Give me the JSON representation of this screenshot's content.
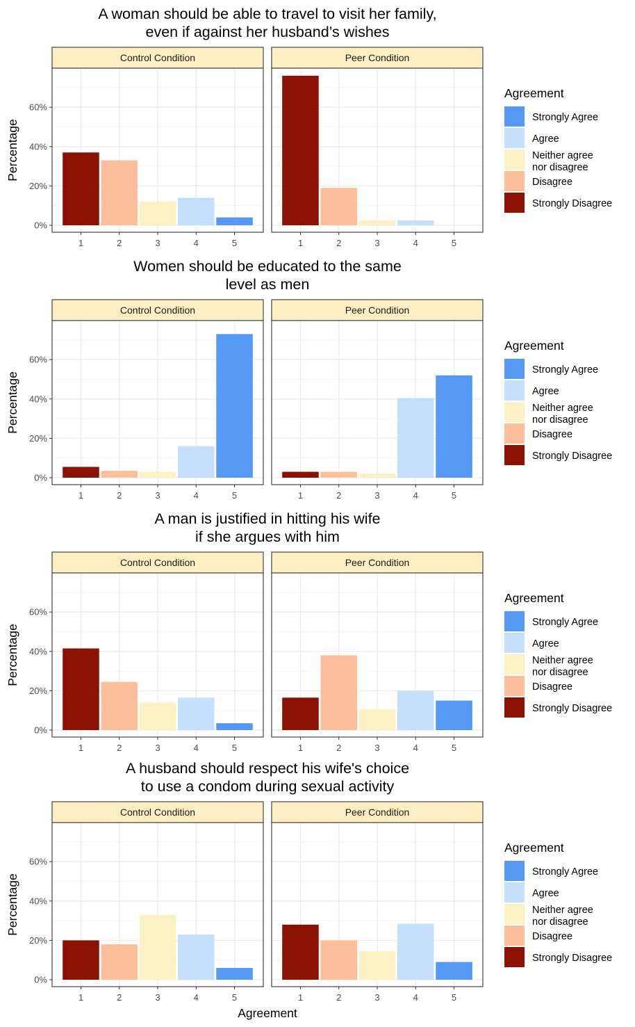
{
  "legend": {
    "title": "Agreement",
    "entries": [
      {
        "label": [
          "Strongly Agree"
        ],
        "color": "#5599F5"
      },
      {
        "label": [
          "Agree"
        ],
        "color": "#C6DFFC"
      },
      {
        "label": [
          "Neither agree",
          "nor disagree"
        ],
        "color": "#FDF0C3"
      },
      {
        "label": [
          "Disagree"
        ],
        "color": "#FDBF99"
      },
      {
        "label": [
          "Strongly Disagree"
        ],
        "color": "#8B1103"
      }
    ]
  },
  "facets": [
    "Control Condition",
    "Peer Condition"
  ],
  "bar_colors": {
    "1": "#8B1103",
    "2": "#FDBF99",
    "3": "#FDF0C3",
    "4": "#C6DFFC",
    "5": "#5599F5"
  },
  "strip_color": "#FDEFC2",
  "chart_data": [
    {
      "type": "bar",
      "title": [
        "A woman should be able to travel to visit her family,",
        "even if against her husband’s wishes"
      ],
      "xlabel": "",
      "ylabel": "Percentage",
      "categories": [
        "1",
        "2",
        "3",
        "4",
        "5"
      ],
      "y_ticks": [
        "0%",
        "20%",
        "40%",
        "60%"
      ],
      "ylim": [
        0,
        78
      ],
      "grid": true,
      "legend_position": "right",
      "series": [
        {
          "name": "Control Condition",
          "values": [
            37,
            33,
            12,
            14,
            4
          ]
        },
        {
          "name": "Peer Condition",
          "values": [
            76,
            19,
            2.5,
            2.5,
            0
          ]
        }
      ]
    },
    {
      "type": "bar",
      "title": [
        "Women should be educated to the same",
        "level as men"
      ],
      "xlabel": "",
      "ylabel": "Percentage",
      "categories": [
        "1",
        "2",
        "3",
        "4",
        "5"
      ],
      "y_ticks": [
        "0%",
        "20%",
        "40%",
        "60%"
      ],
      "ylim": [
        0,
        78
      ],
      "grid": true,
      "legend_position": "right",
      "series": [
        {
          "name": "Control Condition",
          "values": [
            5.5,
            3.5,
            3,
            16,
            73
          ]
        },
        {
          "name": "Peer Condition",
          "values": [
            3,
            3,
            2,
            40.5,
            52
          ]
        }
      ]
    },
    {
      "type": "bar",
      "title": [
        "A man is justified in hitting his wife",
        "if she argues with him"
      ],
      "xlabel": "",
      "ylabel": "Percentage",
      "categories": [
        "1",
        "2",
        "3",
        "4",
        "5"
      ],
      "y_ticks": [
        "0%",
        "20%",
        "40%",
        "60%"
      ],
      "ylim": [
        0,
        78
      ],
      "grid": true,
      "legend_position": "right",
      "series": [
        {
          "name": "Control Condition",
          "values": [
            41.5,
            24.5,
            14,
            16.5,
            3.5
          ]
        },
        {
          "name": "Peer Condition",
          "values": [
            16.5,
            38,
            10.5,
            20,
            15
          ]
        }
      ]
    },
    {
      "type": "bar",
      "title": [
        "A husband should respect his wife's choice",
        "to use a condom during sexual activity"
      ],
      "xlabel": "Agreement",
      "ylabel": "Percentage",
      "categories": [
        "1",
        "2",
        "3",
        "4",
        "5"
      ],
      "y_ticks": [
        "0%",
        "20%",
        "40%",
        "60%"
      ],
      "ylim": [
        0,
        78
      ],
      "grid": true,
      "legend_position": "right",
      "series": [
        {
          "name": "Control Condition",
          "values": [
            20,
            18,
            33,
            23,
            6
          ]
        },
        {
          "name": "Peer Condition",
          "values": [
            28,
            20,
            14.5,
            28.5,
            9
          ]
        }
      ]
    }
  ]
}
